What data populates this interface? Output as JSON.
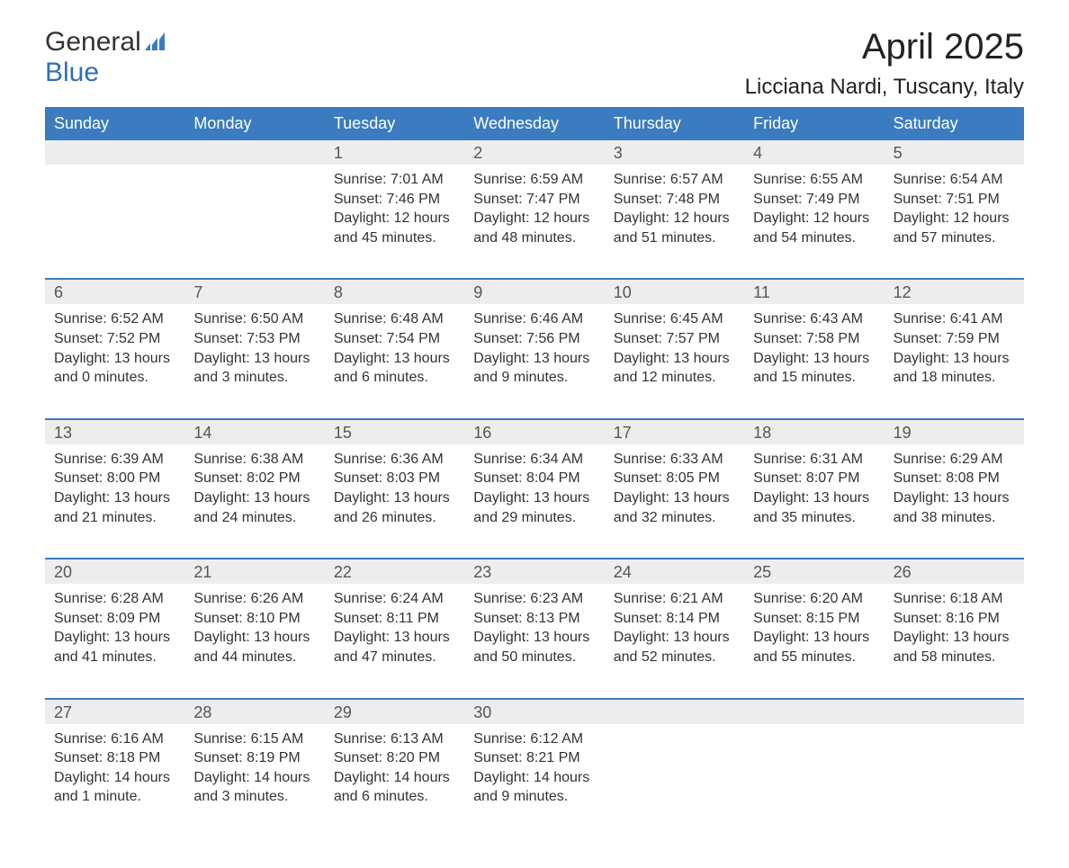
{
  "logo": {
    "general": "General",
    "blue": "Blue",
    "icon_color": "#3b7cc0"
  },
  "title": "April 2025",
  "location": "Licciana Nardi, Tuscany, Italy",
  "colors": {
    "header_bg": "#3b7cc0",
    "header_text": "#ffffff",
    "daynum_bg": "#ededed",
    "sep": "#3b7cc0",
    "body_text": "#333333"
  },
  "weekdays": [
    "Sunday",
    "Monday",
    "Tuesday",
    "Wednesday",
    "Thursday",
    "Friday",
    "Saturday"
  ],
  "weeks": [
    [
      {
        "day": "",
        "lines": []
      },
      {
        "day": "",
        "lines": []
      },
      {
        "day": "1",
        "lines": [
          "Sunrise: 7:01 AM",
          "Sunset: 7:46 PM",
          "Daylight: 12 hours and 45 minutes."
        ]
      },
      {
        "day": "2",
        "lines": [
          "Sunrise: 6:59 AM",
          "Sunset: 7:47 PM",
          "Daylight: 12 hours and 48 minutes."
        ]
      },
      {
        "day": "3",
        "lines": [
          "Sunrise: 6:57 AM",
          "Sunset: 7:48 PM",
          "Daylight: 12 hours and 51 minutes."
        ]
      },
      {
        "day": "4",
        "lines": [
          "Sunrise: 6:55 AM",
          "Sunset: 7:49 PM",
          "Daylight: 12 hours and 54 minutes."
        ]
      },
      {
        "day": "5",
        "lines": [
          "Sunrise: 6:54 AM",
          "Sunset: 7:51 PM",
          "Daylight: 12 hours and 57 minutes."
        ]
      }
    ],
    [
      {
        "day": "6",
        "lines": [
          "Sunrise: 6:52 AM",
          "Sunset: 7:52 PM",
          "Daylight: 13 hours and 0 minutes."
        ]
      },
      {
        "day": "7",
        "lines": [
          "Sunrise: 6:50 AM",
          "Sunset: 7:53 PM",
          "Daylight: 13 hours and 3 minutes."
        ]
      },
      {
        "day": "8",
        "lines": [
          "Sunrise: 6:48 AM",
          "Sunset: 7:54 PM",
          "Daylight: 13 hours and 6 minutes."
        ]
      },
      {
        "day": "9",
        "lines": [
          "Sunrise: 6:46 AM",
          "Sunset: 7:56 PM",
          "Daylight: 13 hours and 9 minutes."
        ]
      },
      {
        "day": "10",
        "lines": [
          "Sunrise: 6:45 AM",
          "Sunset: 7:57 PM",
          "Daylight: 13 hours and 12 minutes."
        ]
      },
      {
        "day": "11",
        "lines": [
          "Sunrise: 6:43 AM",
          "Sunset: 7:58 PM",
          "Daylight: 13 hours and 15 minutes."
        ]
      },
      {
        "day": "12",
        "lines": [
          "Sunrise: 6:41 AM",
          "Sunset: 7:59 PM",
          "Daylight: 13 hours and 18 minutes."
        ]
      }
    ],
    [
      {
        "day": "13",
        "lines": [
          "Sunrise: 6:39 AM",
          "Sunset: 8:00 PM",
          "Daylight: 13 hours and 21 minutes."
        ]
      },
      {
        "day": "14",
        "lines": [
          "Sunrise: 6:38 AM",
          "Sunset: 8:02 PM",
          "Daylight: 13 hours and 24 minutes."
        ]
      },
      {
        "day": "15",
        "lines": [
          "Sunrise: 6:36 AM",
          "Sunset: 8:03 PM",
          "Daylight: 13 hours and 26 minutes."
        ]
      },
      {
        "day": "16",
        "lines": [
          "Sunrise: 6:34 AM",
          "Sunset: 8:04 PM",
          "Daylight: 13 hours and 29 minutes."
        ]
      },
      {
        "day": "17",
        "lines": [
          "Sunrise: 6:33 AM",
          "Sunset: 8:05 PM",
          "Daylight: 13 hours and 32 minutes."
        ]
      },
      {
        "day": "18",
        "lines": [
          "Sunrise: 6:31 AM",
          "Sunset: 8:07 PM",
          "Daylight: 13 hours and 35 minutes."
        ]
      },
      {
        "day": "19",
        "lines": [
          "Sunrise: 6:29 AM",
          "Sunset: 8:08 PM",
          "Daylight: 13 hours and 38 minutes."
        ]
      }
    ],
    [
      {
        "day": "20",
        "lines": [
          "Sunrise: 6:28 AM",
          "Sunset: 8:09 PM",
          "Daylight: 13 hours and 41 minutes."
        ]
      },
      {
        "day": "21",
        "lines": [
          "Sunrise: 6:26 AM",
          "Sunset: 8:10 PM",
          "Daylight: 13 hours and 44 minutes."
        ]
      },
      {
        "day": "22",
        "lines": [
          "Sunrise: 6:24 AM",
          "Sunset: 8:11 PM",
          "Daylight: 13 hours and 47 minutes."
        ]
      },
      {
        "day": "23",
        "lines": [
          "Sunrise: 6:23 AM",
          "Sunset: 8:13 PM",
          "Daylight: 13 hours and 50 minutes."
        ]
      },
      {
        "day": "24",
        "lines": [
          "Sunrise: 6:21 AM",
          "Sunset: 8:14 PM",
          "Daylight: 13 hours and 52 minutes."
        ]
      },
      {
        "day": "25",
        "lines": [
          "Sunrise: 6:20 AM",
          "Sunset: 8:15 PM",
          "Daylight: 13 hours and 55 minutes."
        ]
      },
      {
        "day": "26",
        "lines": [
          "Sunrise: 6:18 AM",
          "Sunset: 8:16 PM",
          "Daylight: 13 hours and 58 minutes."
        ]
      }
    ],
    [
      {
        "day": "27",
        "lines": [
          "Sunrise: 6:16 AM",
          "Sunset: 8:18 PM",
          "Daylight: 14 hours and 1 minute."
        ]
      },
      {
        "day": "28",
        "lines": [
          "Sunrise: 6:15 AM",
          "Sunset: 8:19 PM",
          "Daylight: 14 hours and 3 minutes."
        ]
      },
      {
        "day": "29",
        "lines": [
          "Sunrise: 6:13 AM",
          "Sunset: 8:20 PM",
          "Daylight: 14 hours and 6 minutes."
        ]
      },
      {
        "day": "30",
        "lines": [
          "Sunrise: 6:12 AM",
          "Sunset: 8:21 PM",
          "Daylight: 14 hours and 9 minutes."
        ]
      },
      {
        "day": "",
        "lines": []
      },
      {
        "day": "",
        "lines": []
      },
      {
        "day": "",
        "lines": []
      }
    ]
  ]
}
